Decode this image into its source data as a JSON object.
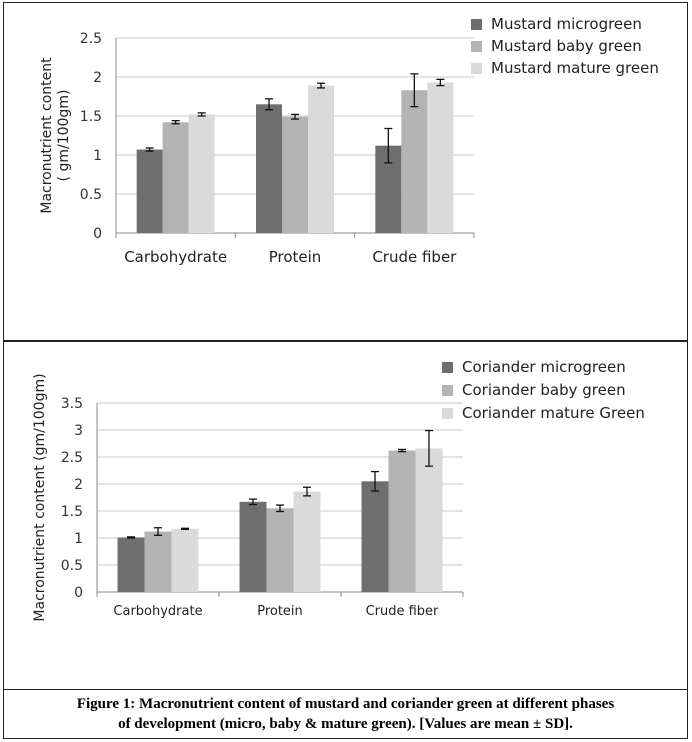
{
  "caption": {
    "line1": "Figure 1: Macronutrient content of mustard and coriander green at different phases",
    "line2": "of development (micro, baby & mature green). [Values are mean ± SD]."
  },
  "colors": {
    "micro": "#6e6e6e",
    "baby": "#b3b3b3",
    "mature": "#dadada",
    "grid": "#c8c8c8"
  },
  "chart_data": [
    {
      "type": "bar",
      "categories": [
        "Carbohydrate",
        "Protein",
        "Crude fiber"
      ],
      "ylabel_lines": [
        "Macronutrient content",
        "( gm/100gm)"
      ],
      "ylim": [
        0,
        2.5
      ],
      "yticks": [
        "0",
        "0.5",
        "1",
        "1.5",
        "2",
        "2.5"
      ],
      "grid": true,
      "legend_position": "top-right",
      "series": [
        {
          "name": "Mustard  microgreen",
          "values": [
            1.07,
            1.65,
            1.12
          ],
          "errors": [
            0.02,
            0.07,
            0.22
          ]
        },
        {
          "name": "Mustard   baby green",
          "values": [
            1.42,
            1.49,
            1.83
          ],
          "errors": [
            0.02,
            0.03,
            0.21
          ]
        },
        {
          "name": "Mustard  mature green",
          "values": [
            1.52,
            1.89,
            1.93
          ],
          "errors": [
            0.02,
            0.03,
            0.04
          ]
        }
      ]
    },
    {
      "type": "bar",
      "categories": [
        "Carbohydrate",
        "Protein",
        "Crude fiber"
      ],
      "ylabel_lines": [
        "Macronutrient content (gm/100gm)"
      ],
      "ylim": [
        0,
        3.5
      ],
      "yticks": [
        "0",
        "0.5",
        "1",
        "1.5",
        "2",
        "2.5",
        "3",
        "3.5"
      ],
      "grid": true,
      "legend_position": "top-right",
      "series": [
        {
          "name": "Coriander microgreen",
          "values": [
            1.01,
            1.67,
            2.05
          ],
          "errors": [
            0.01,
            0.05,
            0.18
          ]
        },
        {
          "name": "Coriander baby green",
          "values": [
            1.12,
            1.55,
            2.62
          ],
          "errors": [
            0.07,
            0.06,
            0.02
          ]
        },
        {
          "name": "Coriander mature Green",
          "values": [
            1.17,
            1.86,
            2.66
          ],
          "errors": [
            0.01,
            0.08,
            0.33
          ]
        }
      ]
    }
  ]
}
